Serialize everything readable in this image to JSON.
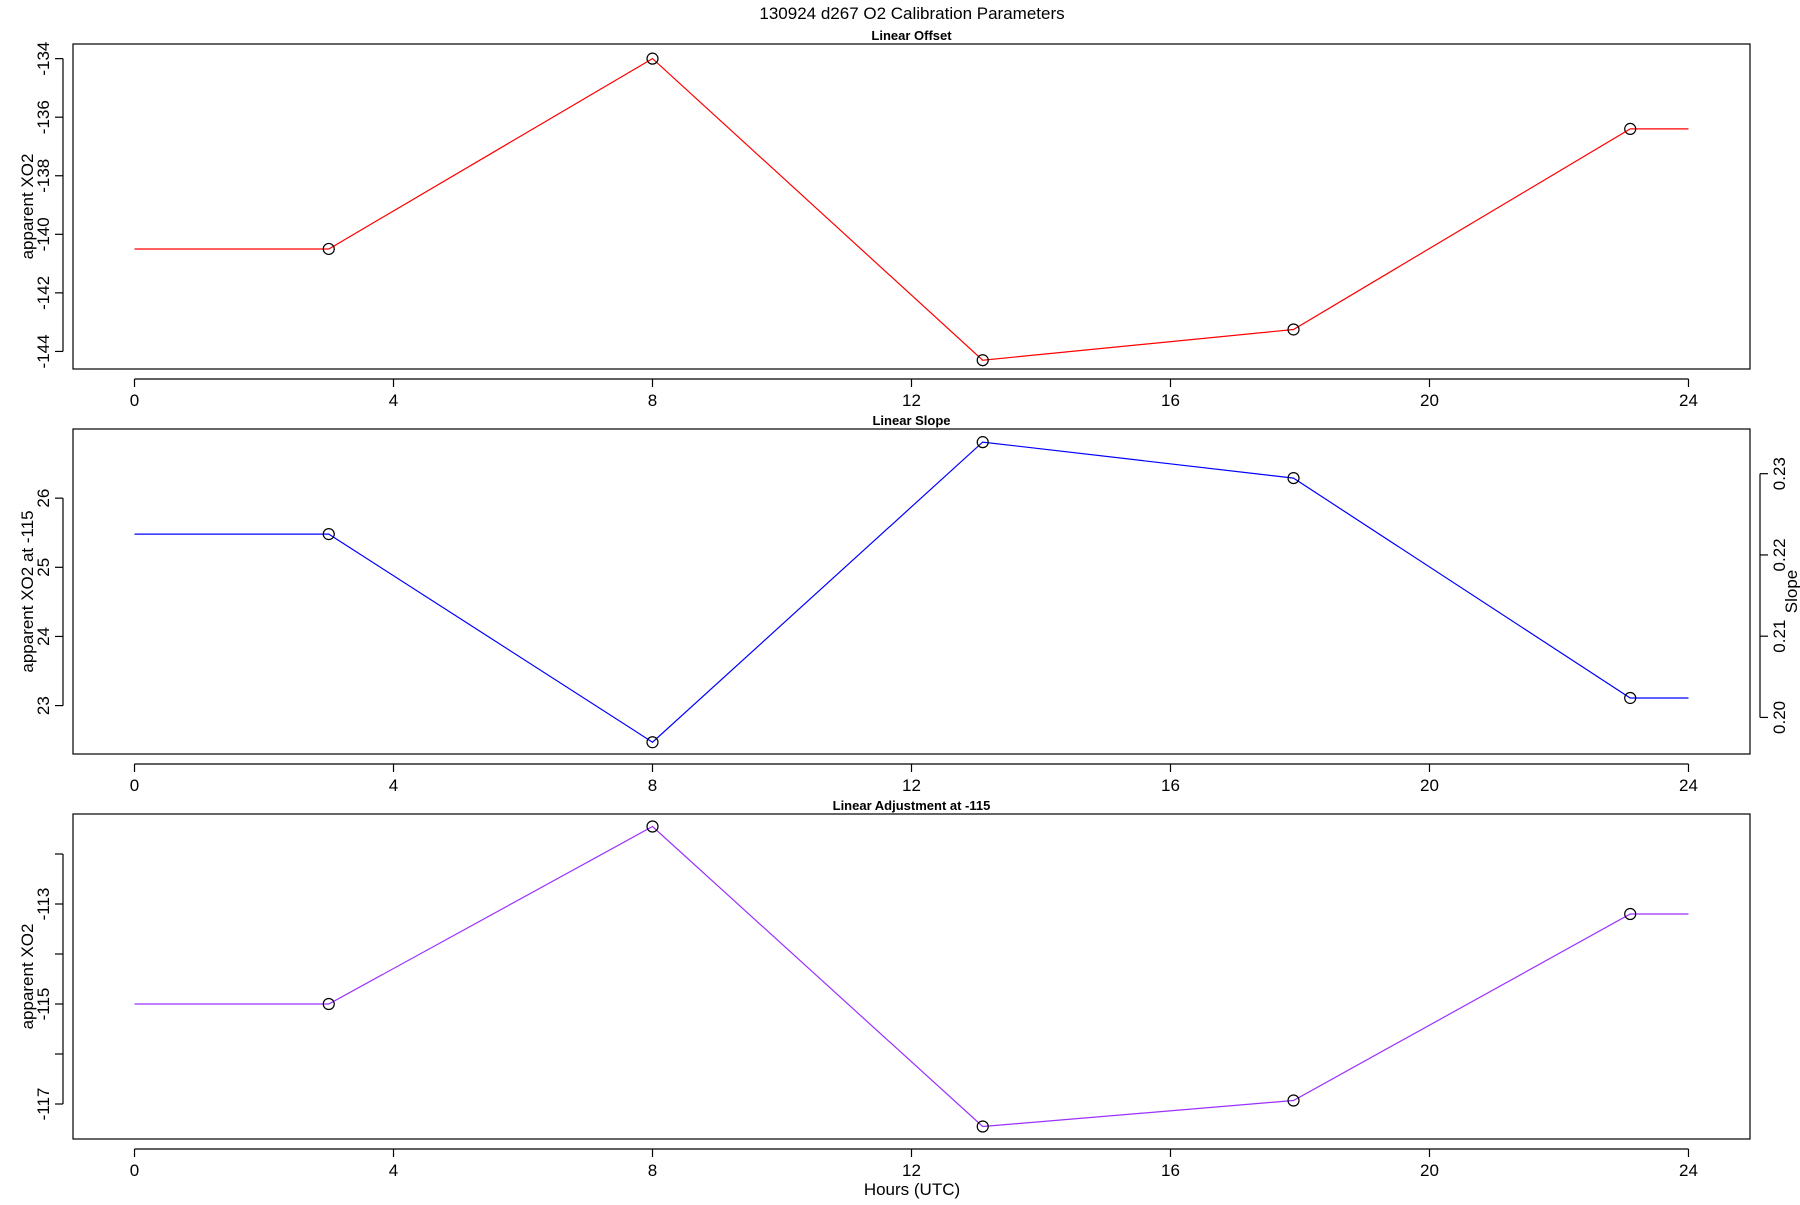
{
  "figure": {
    "title": "130924   d267   O2 Calibration Parameters",
    "xlabel": "Hours (UTC)"
  },
  "chart_data": [
    {
      "type": "line",
      "title": "Linear Offset",
      "ylabel": "apparent XO2",
      "color": "#ff0000",
      "x": [
        0,
        3,
        8,
        13.1,
        17.9,
        23.1,
        24
      ],
      "y": [
        -140.5,
        -140.5,
        -134,
        -144.3,
        -143.25,
        -136.4,
        -136.4
      ],
      "marker_x": [
        3,
        8,
        13.1,
        17.9,
        23.1
      ],
      "marker_y": [
        -140.5,
        -134,
        -144.3,
        -143.25,
        -136.4
      ],
      "xlim": [
        -0.95,
        24.95
      ],
      "ylim": [
        -144.6,
        -133.5
      ],
      "xticks": [
        0,
        4,
        8,
        12,
        16,
        20,
        24
      ],
      "yticks": [
        -144,
        -142,
        -140,
        -138,
        -136,
        -134
      ],
      "xtick_labels": [
        "0",
        "4",
        "8",
        "12",
        "16",
        "20",
        "24"
      ],
      "ytick_labels": [
        "-144",
        "-142",
        "-140",
        "-138",
        "-136",
        "-134"
      ]
    },
    {
      "type": "line",
      "title": "Linear Slope",
      "ylabel": "apparent XO2 at -115",
      "ylabel_right": "Slope",
      "color": "#0000ff",
      "x": [
        0,
        3,
        8,
        13.1,
        17.9,
        23.1,
        24
      ],
      "y": [
        25.48,
        25.48,
        22.47,
        26.81,
        26.29,
        23.11,
        23.11
      ],
      "marker_x": [
        3,
        8,
        13.1,
        17.9,
        23.1
      ],
      "marker_y": [
        25.48,
        22.47,
        26.81,
        26.29,
        23.11
      ],
      "xlim": [
        -0.95,
        24.95
      ],
      "ylim": [
        22.3,
        27.0
      ],
      "xticks": [
        0,
        4,
        8,
        12,
        16,
        20,
        24
      ],
      "yticks": [
        23,
        24,
        25,
        26
      ],
      "xtick_labels": [
        "0",
        "4",
        "8",
        "12",
        "16",
        "20",
        "24"
      ],
      "ytick_labels": [
        "23",
        "24",
        "25",
        "26"
      ],
      "right_ylim": [
        0.1955,
        0.2355
      ],
      "right_yticks": [
        0.2,
        0.21,
        0.22,
        0.23
      ],
      "right_ytick_labels": [
        "0.20",
        "0.21",
        "0.22",
        "0.23"
      ]
    },
    {
      "type": "line",
      "title": "Linear Adjustment at -115",
      "ylabel": "apparent XO2",
      "color": "#9b30ff",
      "x": [
        0,
        3,
        8,
        13.1,
        17.9,
        23.1,
        24
      ],
      "y": [
        -115,
        -115,
        -111.45,
        -117.45,
        -116.93,
        -113.2,
        -113.2
      ],
      "marker_x": [
        3,
        8,
        13.1,
        17.9,
        23.1
      ],
      "marker_y": [
        -115,
        -111.45,
        -117.45,
        -116.93,
        -113.2
      ],
      "xlim": [
        -0.95,
        24.95
      ],
      "ylim": [
        -117.7,
        -111.2
      ],
      "xticks": [
        0,
        4,
        8,
        12,
        16,
        20,
        24
      ],
      "yticks": [
        -117,
        -116,
        -115,
        -114,
        -113,
        -112
      ],
      "xtick_labels": [
        "0",
        "4",
        "8",
        "12",
        "16",
        "20",
        "24"
      ],
      "ytick_labels": [
        "-117",
        "",
        "-115",
        "",
        "-113",
        ""
      ]
    }
  ]
}
